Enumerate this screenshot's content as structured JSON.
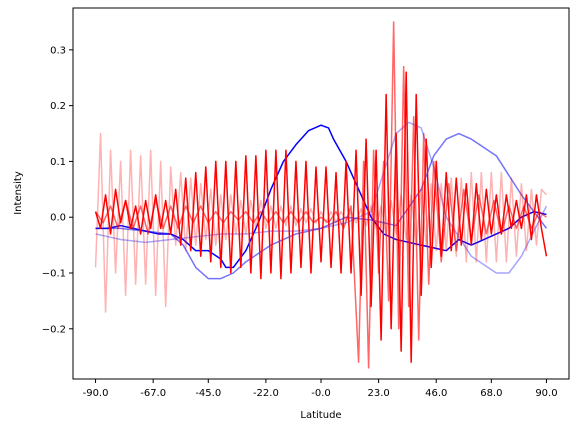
{
  "chart_data": {
    "type": "line",
    "title": "",
    "xlabel": "Latitude",
    "ylabel": "Intensity",
    "xlim": [
      -99.0,
      99.0
    ],
    "ylim": [
      -0.29,
      0.375
    ],
    "xticks": [
      -90.0,
      -67.0,
      -45.0,
      -22.0,
      0.0,
      23.0,
      46.0,
      68.0,
      90.0
    ],
    "xtick_labels": [
      "-90.0",
      "-67.0",
      "-45.0",
      "-22.0",
      "-0.0",
      "23.0",
      "46.0",
      "68.0",
      "90.0"
    ],
    "yticks": [
      -0.2,
      -0.1,
      0.0,
      0.1,
      0.2,
      0.3
    ],
    "ytick_labels": [
      "−0.2",
      "−0.1",
      "0.0",
      "0.1",
      "0.2",
      "0.3"
    ],
    "grid": false,
    "legend": null,
    "series": [
      {
        "color": "#0000ff",
        "opacity": 0.35,
        "x": [
          -90,
          -80,
          -70,
          -60,
          -50,
          -40,
          -30,
          -20,
          -10,
          0,
          10,
          20,
          25,
          30,
          35,
          40,
          45,
          50,
          60,
          70,
          75,
          80,
          90
        ],
        "y": [
          -0.03,
          -0.04,
          -0.045,
          -0.04,
          -0.035,
          -0.03,
          -0.03,
          -0.025,
          -0.025,
          -0.02,
          -0.01,
          0.01,
          0.08,
          0.15,
          0.17,
          0.16,
          0.09,
          0.0,
          -0.07,
          -0.1,
          -0.1,
          -0.07,
          0.02
        ]
      },
      {
        "color": "#0000ff",
        "opacity": 0.55,
        "x": [
          -90,
          -80,
          -70,
          -60,
          -55,
          -50,
          -45,
          -40,
          -35,
          -30,
          -20,
          -10,
          0,
          10,
          20,
          30,
          40,
          45,
          50,
          55,
          60,
          70,
          80,
          90
        ],
        "y": [
          -0.02,
          -0.02,
          -0.025,
          -0.03,
          -0.05,
          -0.09,
          -0.11,
          -0.11,
          -0.1,
          -0.08,
          -0.05,
          -0.03,
          -0.02,
          0.0,
          -0.005,
          -0.015,
          0.05,
          0.11,
          0.14,
          0.15,
          0.14,
          0.11,
          0.04,
          -0.02
        ]
      },
      {
        "color": "#0000ff",
        "opacity": 1.0,
        "x": [
          -90,
          -85,
          -80,
          -75,
          -70,
          -65,
          -60,
          -55,
          -50,
          -45,
          -40,
          -38,
          -35,
          -30,
          -25,
          -20,
          -15,
          -10,
          -5,
          0,
          3,
          5,
          10,
          15,
          20,
          25,
          30,
          35,
          40,
          45,
          50,
          55,
          60,
          65,
          70,
          75,
          80,
          85,
          90
        ],
        "y": [
          -0.02,
          -0.02,
          -0.015,
          -0.02,
          -0.025,
          -0.03,
          -0.03,
          -0.04,
          -0.06,
          -0.06,
          -0.075,
          -0.09,
          -0.09,
          -0.06,
          -0.01,
          0.05,
          0.1,
          0.13,
          0.155,
          0.165,
          0.16,
          0.14,
          0.1,
          0.05,
          0.0,
          -0.03,
          -0.04,
          -0.045,
          -0.05,
          -0.055,
          -0.06,
          -0.04,
          -0.05,
          -0.04,
          -0.03,
          -0.02,
          0.0,
          0.01,
          0.005
        ]
      },
      {
        "color": "#ff0000",
        "opacity": 0.3,
        "x": [
          -90,
          -88,
          -86,
          -84,
          -82,
          -80,
          -78,
          -76,
          -74,
          -72,
          -70,
          -68,
          -66,
          -64,
          -62,
          -60,
          -58,
          -56,
          -54,
          -52,
          -50,
          -48,
          -46,
          -44,
          -42,
          -40,
          -38,
          -36,
          -34,
          -32,
          -30,
          -28,
          -26,
          -24,
          -22,
          -20,
          -18,
          -16,
          -14,
          -12,
          -10,
          -8,
          -6,
          -4,
          -2,
          0,
          2,
          4,
          6,
          8,
          10,
          12,
          14,
          16,
          18,
          20,
          22,
          24,
          26,
          28,
          30,
          32,
          34,
          36,
          38,
          40,
          42,
          44,
          46,
          48,
          50,
          52,
          54,
          56,
          58,
          60,
          62,
          64,
          66,
          68,
          70,
          72,
          74,
          76,
          78,
          80,
          82,
          84,
          86,
          88,
          90
        ],
        "y": [
          -0.09,
          0.15,
          -0.17,
          0.12,
          -0.1,
          0.1,
          -0.14,
          0.12,
          -0.12,
          0.11,
          -0.12,
          0.12,
          -0.14,
          0.1,
          -0.16,
          0.09,
          -0.05,
          0.08,
          -0.06,
          0.07,
          -0.05,
          0.06,
          -0.04,
          0.05,
          -0.05,
          0.04,
          -0.04,
          0.04,
          -0.03,
          0.03,
          -0.03,
          0.03,
          -0.02,
          0.03,
          -0.02,
          0.02,
          -0.02,
          0.02,
          -0.015,
          0.02,
          -0.015,
          0.015,
          -0.01,
          0.015,
          -0.01,
          0.01,
          -0.01,
          0.01,
          -0.01,
          0.01,
          -0.005,
          0.01,
          -0.01,
          0.015,
          -0.015,
          0.02,
          -0.02,
          0.02,
          -0.03,
          0.03,
          -0.03,
          0.04,
          -0.04,
          0.04,
          -0.05,
          0.05,
          -0.05,
          0.06,
          -0.06,
          0.06,
          -0.06,
          0.07,
          -0.07,
          0.07,
          -0.08,
          0.08,
          -0.08,
          0.08,
          -0.08,
          0.08,
          -0.08,
          0.08,
          -0.08,
          0.07,
          -0.07,
          0.06,
          -0.06,
          0.05,
          -0.05,
          0.05,
          0.04
        ]
      },
      {
        "color": "#ff0000",
        "opacity": 0.6,
        "x": [
          -90,
          -87,
          -84,
          -81,
          -78,
          -75,
          -72,
          -69,
          -66,
          -63,
          -60,
          -57,
          -54,
          -51,
          -48,
          -45,
          -42,
          -39,
          -36,
          -33,
          -30,
          -27,
          -24,
          -21,
          -18,
          -15,
          -12,
          -9,
          -6,
          -3,
          0,
          3,
          6,
          9,
          12,
          15,
          17,
          19,
          21,
          23,
          25,
          27,
          29,
          31,
          33,
          35,
          37,
          39,
          41,
          43,
          45,
          48,
          51,
          54,
          57,
          60,
          63,
          66,
          69,
          72,
          75,
          78,
          81,
          84,
          87,
          90
        ],
        "y": [
          0.01,
          -0.01,
          0.02,
          -0.02,
          0.03,
          -0.02,
          0.02,
          -0.03,
          0.03,
          -0.02,
          0.02,
          -0.02,
          0.02,
          -0.01,
          0.02,
          -0.01,
          0.01,
          -0.01,
          0.01,
          -0.005,
          0.01,
          -0.01,
          0.01,
          -0.01,
          0.01,
          -0.01,
          0.01,
          -0.01,
          0.01,
          -0.01,
          0.0,
          -0.01,
          0.01,
          -0.02,
          0.02,
          -0.26,
          0.1,
          -0.27,
          0.12,
          -0.1,
          0.1,
          -0.15,
          0.35,
          -0.2,
          0.27,
          -0.16,
          0.18,
          -0.22,
          0.15,
          -0.12,
          0.1,
          -0.08,
          0.06,
          -0.06,
          0.05,
          -0.04,
          0.04,
          -0.03,
          0.03,
          -0.03,
          0.02,
          -0.02,
          0.02,
          -0.02,
          0.01,
          0.0
        ]
      },
      {
        "color": "#ff0000",
        "opacity": 1.0,
        "x": [
          -90,
          -88,
          -86,
          -84,
          -82,
          -80,
          -78,
          -76,
          -74,
          -72,
          -70,
          -68,
          -66,
          -64,
          -62,
          -60,
          -58,
          -56,
          -54,
          -52,
          -50,
          -48,
          -46,
          -44,
          -42,
          -40,
          -38,
          -36,
          -34,
          -32,
          -30,
          -28,
          -26,
          -24,
          -22,
          -20,
          -18,
          -16,
          -14,
          -12,
          -10,
          -8,
          -6,
          -4,
          -2,
          0,
          2,
          4,
          6,
          8,
          10,
          12,
          14,
          16,
          18,
          20,
          22,
          24,
          26,
          28,
          30,
          32,
          34,
          36,
          38,
          40,
          42,
          44,
          46,
          48,
          50,
          52,
          54,
          56,
          58,
          60,
          62,
          64,
          66,
          68,
          70,
          72,
          74,
          76,
          78,
          80,
          82,
          84,
          86,
          88,
          90
        ],
        "y": [
          0.01,
          -0.02,
          0.04,
          -0.03,
          0.05,
          -0.01,
          0.03,
          -0.02,
          0.02,
          -0.03,
          0.03,
          -0.02,
          0.04,
          -0.02,
          0.03,
          -0.03,
          0.05,
          -0.05,
          0.07,
          -0.06,
          0.08,
          -0.07,
          0.09,
          -0.08,
          0.1,
          -0.09,
          0.1,
          -0.1,
          0.1,
          -0.09,
          0.11,
          -0.1,
          0.11,
          -0.11,
          0.12,
          -0.1,
          0.12,
          -0.11,
          0.12,
          -0.1,
          0.1,
          -0.09,
          0.1,
          -0.1,
          0.09,
          -0.08,
          0.09,
          -0.09,
          0.08,
          -0.1,
          0.1,
          -0.1,
          0.12,
          -0.14,
          0.14,
          -0.16,
          0.12,
          -0.22,
          0.22,
          -0.2,
          0.15,
          -0.24,
          0.26,
          -0.26,
          0.22,
          -0.14,
          0.14,
          -0.09,
          0.1,
          -0.07,
          0.08,
          -0.06,
          0.07,
          -0.05,
          0.06,
          -0.05,
          0.06,
          -0.04,
          0.05,
          -0.03,
          0.04,
          -0.03,
          0.04,
          -0.02,
          0.03,
          -0.02,
          0.04,
          -0.04,
          0.04,
          -0.02,
          -0.07
        ]
      }
    ]
  }
}
